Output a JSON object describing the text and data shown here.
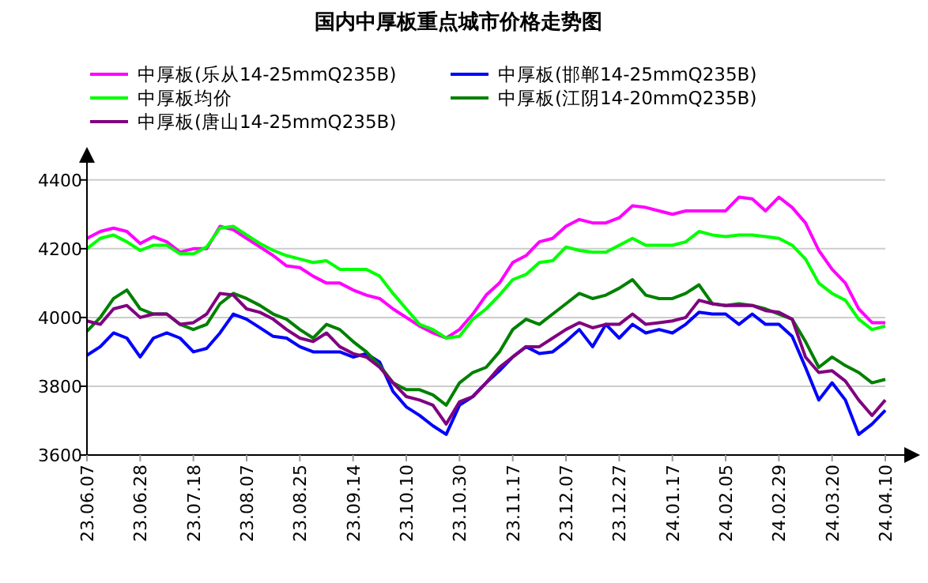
{
  "chart_data": {
    "type": "line",
    "title": "国内中厚板重点城市价格走势图",
    "categories": [
      "23.06.07",
      null,
      null,
      null,
      "23.06.28",
      null,
      null,
      null,
      "23.07.18",
      null,
      null,
      null,
      "23.08.07",
      null,
      null,
      null,
      "23.08.25",
      null,
      null,
      null,
      "23.09.14",
      null,
      null,
      null,
      "23.10.10",
      null,
      null,
      null,
      "23.10.30",
      null,
      null,
      null,
      "23.11.17",
      null,
      null,
      null,
      "23.12.07",
      null,
      null,
      null,
      "23.12.27",
      null,
      null,
      null,
      "24.01.17",
      null,
      null,
      null,
      "24.02.05",
      null,
      null,
      null,
      "24.02.29",
      null,
      null,
      null,
      "24.03.20",
      null,
      null,
      null,
      "24.04.10"
    ],
    "series": [
      {
        "name": "中厚板(乐从14-25mmQ235B)",
        "color": "#ff00ff",
        "values": [
          4230,
          4250,
          4260,
          4250,
          4215,
          4235,
          4220,
          4190,
          4200,
          4200,
          4265,
          4255,
          4230,
          4205,
          4180,
          4150,
          4145,
          4120,
          4100,
          4100,
          4080,
          4065,
          4055,
          4025,
          4000,
          3975,
          3955,
          3940,
          3965,
          4010,
          4065,
          4100,
          4160,
          4180,
          4220,
          4230,
          4265,
          4285,
          4275,
          4275,
          4290,
          4325,
          4320,
          4310,
          4300,
          4310,
          4310,
          4310,
          4310,
          4350,
          4345,
          4310,
          4350,
          4320,
          4275,
          4195,
          4140,
          4100,
          4025,
          3985,
          3985
        ]
      },
      {
        "name": "中厚板(邯郸14-25mmQ235B)",
        "color": "#0000ff",
        "values": [
          3890,
          3915,
          3955,
          3940,
          3885,
          3940,
          3955,
          3940,
          3900,
          3910,
          3955,
          4010,
          3995,
          3970,
          3945,
          3940,
          3915,
          3900,
          3900,
          3900,
          3885,
          3895,
          3870,
          3785,
          3740,
          3715,
          3685,
          3660,
          3745,
          3770,
          3810,
          3845,
          3885,
          3915,
          3895,
          3900,
          3930,
          3965,
          3915,
          3980,
          3940,
          3980,
          3955,
          3965,
          3955,
          3980,
          4015,
          4010,
          4010,
          3980,
          4010,
          3980,
          3980,
          3945,
          3855,
          3760,
          3810,
          3760,
          3660,
          3690,
          3730
        ]
      },
      {
        "name": "中厚板均价",
        "color": "#00ff00",
        "values": [
          4200,
          4230,
          4240,
          4220,
          4195,
          4210,
          4210,
          4185,
          4185,
          4205,
          4260,
          4265,
          4240,
          4215,
          4195,
          4180,
          4170,
          4160,
          4165,
          4140,
          4140,
          4140,
          4120,
          4070,
          4025,
          3980,
          3965,
          3940,
          3945,
          3995,
          4025,
          4065,
          4110,
          4125,
          4160,
          4165,
          4205,
          4195,
          4190,
          4190,
          4210,
          4230,
          4210,
          4210,
          4210,
          4220,
          4250,
          4240,
          4235,
          4240,
          4240,
          4235,
          4230,
          4210,
          4170,
          4100,
          4070,
          4050,
          3995,
          3965,
          3975
        ]
      },
      {
        "name": "中厚板(江阴14-20mmQ235B)",
        "color": "#008000",
        "values": [
          3960,
          4000,
          4055,
          4080,
          4025,
          4010,
          4010,
          3980,
          3965,
          3980,
          4040,
          4070,
          4055,
          4035,
          4010,
          3995,
          3965,
          3940,
          3980,
          3965,
          3930,
          3900,
          3860,
          3810,
          3790,
          3790,
          3775,
          3745,
          3810,
          3840,
          3855,
          3900,
          3965,
          3995,
          3980,
          4010,
          4040,
          4070,
          4055,
          4065,
          4085,
          4110,
          4065,
          4055,
          4055,
          4070,
          4095,
          4040,
          4035,
          4040,
          4035,
          4025,
          4010,
          3995,
          3930,
          3855,
          3885,
          3860,
          3840,
          3810,
          3820
        ]
      },
      {
        "name": "中厚板(唐山14-25mmQ235B)",
        "color": "#800080",
        "values": [
          3990,
          3980,
          4025,
          4035,
          4000,
          4010,
          4010,
          3980,
          3985,
          4010,
          4070,
          4065,
          4025,
          4015,
          3995,
          3965,
          3940,
          3930,
          3955,
          3915,
          3895,
          3885,
          3855,
          3810,
          3770,
          3760,
          3745,
          3690,
          3755,
          3770,
          3810,
          3855,
          3885,
          3915,
          3915,
          3940,
          3965,
          3985,
          3970,
          3980,
          3980,
          4010,
          3980,
          3985,
          3990,
          4000,
          4050,
          4040,
          4035,
          4035,
          4035,
          4020,
          4015,
          3995,
          3885,
          3840,
          3845,
          3815,
          3760,
          3715,
          3760
        ]
      }
    ],
    "ylim": [
      3600,
      4450
    ],
    "yticks": [
      3600,
      3800,
      4000,
      4200,
      4400
    ],
    "grid": "y",
    "legend": "top",
    "marker": "none",
    "line_style": "solid"
  }
}
